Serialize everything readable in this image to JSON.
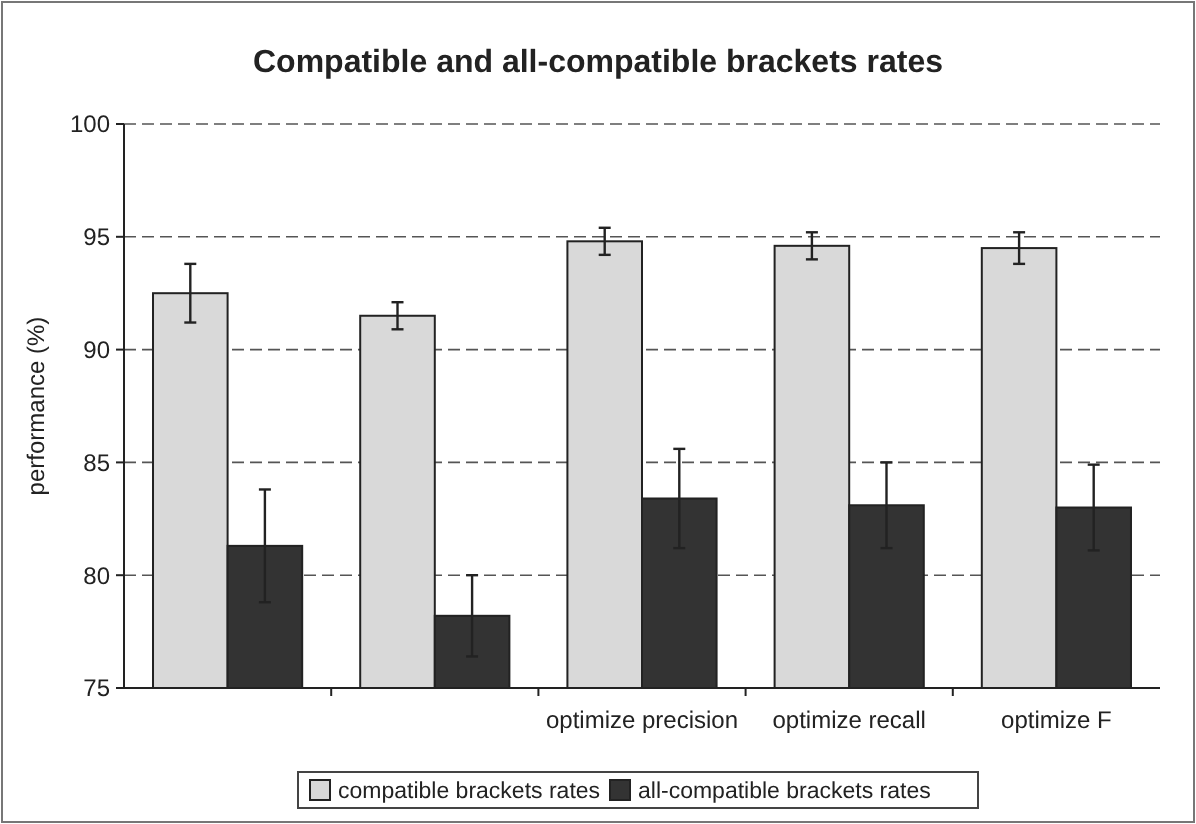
{
  "chart_data": {
    "type": "bar",
    "title": "Compatible and all-compatible brackets rates",
    "ylabel": "performance (%)",
    "categories": [
      null,
      null,
      "optimize precision",
      "optimize recall",
      "optimize F"
    ],
    "series": [
      {
        "name": "compatible brackets rates",
        "color": "#d9d9d9",
        "values": [
          92.5,
          91.5,
          94.8,
          94.6,
          94.5
        ],
        "errors": [
          1.3,
          0.6,
          0.6,
          0.6,
          0.7
        ]
      },
      {
        "name": "all-compatible brackets rates",
        "color": "#333333",
        "values": [
          81.3,
          78.2,
          83.4,
          83.1,
          83.0
        ],
        "errors": [
          2.5,
          1.8,
          2.2,
          1.9,
          1.9
        ]
      }
    ],
    "ylim": [
      75,
      100
    ],
    "yticks": [
      75,
      80,
      85,
      90,
      95,
      100
    ],
    "grid": "y",
    "legend": "bottom"
  }
}
